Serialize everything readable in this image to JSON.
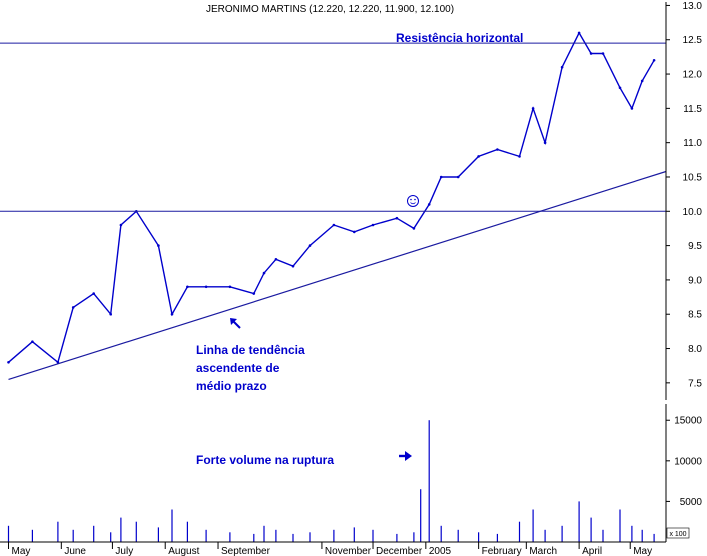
{
  "chart_data": {
    "type": "line",
    "title": "JERONIMO MARTINS (12.220, 12.220, 11.900, 12.100)",
    "xlabel": "",
    "ylabel": "",
    "grid": false,
    "x_tick_labels": [
      "May",
      "June",
      "July",
      "August",
      "September",
      "November",
      "December",
      "2005",
      "February",
      "March",
      "April",
      "May"
    ],
    "price_axis": {
      "ylim": [
        7.25,
        13.05
      ],
      "ticks": [
        "7.5",
        "8.0",
        "8.5",
        "9.0",
        "9.5",
        "10.0",
        "10.5",
        "11.0",
        "11.5",
        "12.0",
        "12.5",
        "13.0"
      ]
    },
    "volume_axis": {
      "ylim": [
        0,
        17000
      ],
      "ticks": [
        "5000",
        "10000",
        "15000"
      ],
      "unit_label": "x 100"
    },
    "series": [
      {
        "type": "price",
        "color": "#0000cc",
        "x": [
          "2004-05-01",
          "2004-05-15",
          "2004-05-30",
          "2004-06-08",
          "2004-06-20",
          "2004-06-30",
          "2004-07-06",
          "2004-07-15",
          "2004-07-28",
          "2004-08-05",
          "2004-08-14",
          "2004-08-25",
          "2004-09-08",
          "2004-09-22",
          "2004-09-28",
          "2004-10-05",
          "2004-10-15",
          "2004-10-25",
          "2004-11-08",
          "2004-11-20",
          "2004-12-01",
          "2004-12-15",
          "2004-12-25",
          "2005-01-03",
          "2005-01-10",
          "2005-01-20",
          "2005-02-01",
          "2005-02-12",
          "2005-02-25",
          "2005-03-05",
          "2005-03-12",
          "2005-03-22",
          "2005-04-01",
          "2005-04-08",
          "2005-04-15",
          "2005-04-25",
          "2005-05-02",
          "2005-05-08",
          "2005-05-15"
        ],
        "values": [
          7.8,
          8.1,
          7.8,
          8.6,
          8.8,
          8.5,
          9.8,
          10.0,
          9.5,
          8.5,
          8.9,
          8.9,
          8.9,
          8.8,
          9.1,
          9.3,
          9.2,
          9.5,
          9.8,
          9.7,
          9.8,
          9.9,
          9.75,
          10.1,
          10.5,
          10.5,
          10.8,
          10.9,
          10.8,
          11.5,
          11.0,
          12.1,
          12.6,
          12.3,
          12.3,
          11.8,
          11.5,
          11.9,
          12.2
        ]
      },
      {
        "type": "volume",
        "color": "#0000cc",
        "x": [
          "2004-05-01",
          "2004-05-15",
          "2004-05-30",
          "2004-06-08",
          "2004-06-20",
          "2004-06-30",
          "2004-07-06",
          "2004-07-15",
          "2004-07-28",
          "2004-08-05",
          "2004-08-14",
          "2004-08-25",
          "2004-09-08",
          "2004-09-22",
          "2004-09-28",
          "2004-10-05",
          "2004-10-15",
          "2004-10-25",
          "2004-11-08",
          "2004-11-20",
          "2004-12-01",
          "2004-12-15",
          "2004-12-25",
          "2004-12-29",
          "2005-01-03",
          "2005-01-10",
          "2005-01-20",
          "2005-02-01",
          "2005-02-12",
          "2005-02-25",
          "2005-03-05",
          "2005-03-12",
          "2005-03-22",
          "2005-04-01",
          "2005-04-08",
          "2005-04-15",
          "2005-04-25",
          "2005-05-02",
          "2005-05-08",
          "2005-05-15"
        ],
        "values": [
          2000,
          1500,
          2500,
          1500,
          2000,
          1200,
          3000,
          2500,
          1800,
          4000,
          2500,
          1500,
          1200,
          1000,
          2000,
          1500,
          1000,
          1200,
          1500,
          1800,
          1500,
          1000,
          1200,
          6500,
          15000,
          2000,
          1500,
          1200,
          1000,
          2500,
          4000,
          1500,
          2000,
          5000,
          3000,
          1500,
          4000,
          2000,
          1500,
          1000
        ]
      }
    ],
    "annotations": {
      "resistance_label": "Resistência horizontal",
      "trendline_label_lines": [
        "Linha de tendência",
        "ascendente de",
        "médio prazo"
      ],
      "volume_label": "Forte volume na ruptura"
    },
    "reference_lines": {
      "resistance_upper": 12.45,
      "resistance_lower": 10.0,
      "trendline": {
        "start": [
          "2004-05-01",
          7.55
        ],
        "end": [
          "2005-05-22",
          10.58
        ]
      }
    }
  }
}
